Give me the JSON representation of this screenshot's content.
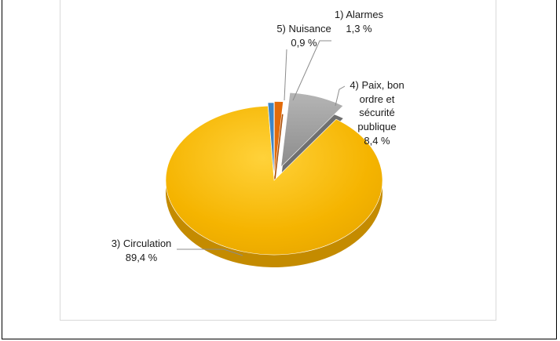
{
  "chart_data": {
    "type": "pie",
    "title": "",
    "slices": [
      {
        "name": "1) Alarmes",
        "value": 1.3,
        "label": "1,3 %",
        "color": "#e26b0a"
      },
      {
        "name": "4) Paix, bon ordre et sécurité publique",
        "value": 8.4,
        "label": "8,4 %",
        "color": "#999999"
      },
      {
        "name": "3) Circulation",
        "value": 89.4,
        "label": "89,4 %",
        "color": "#f5b800"
      },
      {
        "name": "5) Nuisance",
        "value": 0.9,
        "label": "0,9 %",
        "color": "#3d85c6"
      }
    ],
    "labels": {
      "alarmes": {
        "name": "1) Alarmes",
        "value": "1,3 %"
      },
      "paix": {
        "lines": [
          "4) Paix, bon",
          "ordre et",
          "sécurité",
          "publique"
        ],
        "value": "8,4 %"
      },
      "circulation": {
        "name": "3) Circulation",
        "value": "89,4 %"
      },
      "nuisance": {
        "name": "5) Nuisance",
        "value": "0,9 %"
      }
    },
    "legend": "none"
  }
}
